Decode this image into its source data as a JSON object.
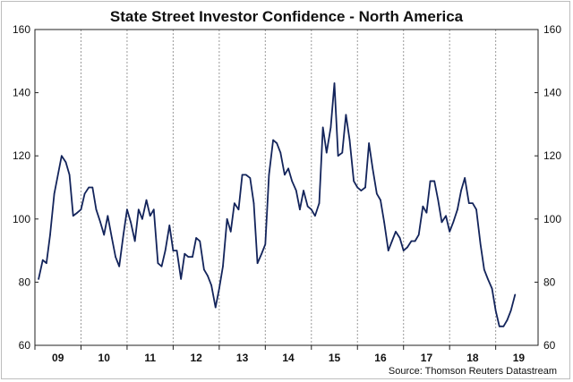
{
  "chart_data": {
    "type": "line",
    "title": "State Street Investor Confidence - North America",
    "source": "Source: Thomson Reuters Datastream",
    "xlabel": "",
    "ylabel": "",
    "ylim": [
      60,
      160
    ],
    "yticks": [
      60,
      80,
      100,
      120,
      140,
      160
    ],
    "y_axes": [
      "left",
      "right"
    ],
    "grid": "vertical dashed at year boundaries",
    "line_color": "#13245b",
    "xlim": [
      2008.5,
      2019.42
    ],
    "year_ticks": [
      {
        "label": "09",
        "year": 2009
      },
      {
        "label": "10",
        "year": 2010
      },
      {
        "label": "11",
        "year": 2011
      },
      {
        "label": "12",
        "year": 2012
      },
      {
        "label": "13",
        "year": 2013
      },
      {
        "label": "14",
        "year": 2014
      },
      {
        "label": "15",
        "year": 2015
      },
      {
        "label": "16",
        "year": 2016
      },
      {
        "label": "17",
        "year": 2017
      },
      {
        "label": "18",
        "year": 2018
      },
      {
        "label": "19",
        "year": 2019
      }
    ],
    "series": [
      {
        "values": [
          [
            2008.58,
            81
          ],
          [
            2008.67,
            87
          ],
          [
            2008.75,
            86
          ],
          [
            2008.83,
            95
          ],
          [
            2008.92,
            108
          ],
          [
            2009.0,
            114
          ],
          [
            2009.08,
            120
          ],
          [
            2009.17,
            118
          ],
          [
            2009.25,
            114
          ],
          [
            2009.33,
            101
          ],
          [
            2009.42,
            102
          ],
          [
            2009.5,
            103
          ],
          [
            2009.58,
            108
          ],
          [
            2009.67,
            110
          ],
          [
            2009.75,
            110
          ],
          [
            2009.83,
            103
          ],
          [
            2009.92,
            99
          ],
          [
            2010.0,
            95
          ],
          [
            2010.08,
            101
          ],
          [
            2010.17,
            94
          ],
          [
            2010.25,
            88
          ],
          [
            2010.33,
            85
          ],
          [
            2010.42,
            95
          ],
          [
            2010.5,
            103
          ],
          [
            2010.58,
            99
          ],
          [
            2010.67,
            93
          ],
          [
            2010.75,
            103
          ],
          [
            2010.83,
            100
          ],
          [
            2010.92,
            106
          ],
          [
            2011.0,
            101
          ],
          [
            2011.08,
            103
          ],
          [
            2011.17,
            86
          ],
          [
            2011.25,
            85
          ],
          [
            2011.33,
            90
          ],
          [
            2011.42,
            98
          ],
          [
            2011.5,
            90
          ],
          [
            2011.58,
            90
          ],
          [
            2011.67,
            81
          ],
          [
            2011.75,
            89
          ],
          [
            2011.83,
            88
          ],
          [
            2011.92,
            88
          ],
          [
            2012.0,
            94
          ],
          [
            2012.08,
            93
          ],
          [
            2012.17,
            84
          ],
          [
            2012.25,
            82
          ],
          [
            2012.33,
            79
          ],
          [
            2012.42,
            72
          ],
          [
            2012.5,
            78
          ],
          [
            2012.58,
            85
          ],
          [
            2012.67,
            100
          ],
          [
            2012.75,
            96
          ],
          [
            2012.83,
            105
          ],
          [
            2012.92,
            103
          ],
          [
            2013.0,
            114
          ],
          [
            2013.08,
            114
          ],
          [
            2013.17,
            113
          ],
          [
            2013.25,
            105
          ],
          [
            2013.33,
            86
          ],
          [
            2013.42,
            89
          ],
          [
            2013.5,
            92
          ],
          [
            2013.58,
            114
          ],
          [
            2013.67,
            125
          ],
          [
            2013.75,
            124
          ],
          [
            2013.83,
            121
          ],
          [
            2013.92,
            114
          ],
          [
            2014.0,
            116
          ],
          [
            2014.08,
            112
          ],
          [
            2014.17,
            109
          ],
          [
            2014.25,
            103
          ],
          [
            2014.33,
            109
          ],
          [
            2014.42,
            104
          ],
          [
            2014.5,
            103
          ],
          [
            2014.58,
            101
          ],
          [
            2014.67,
            105
          ],
          [
            2014.75,
            129
          ],
          [
            2014.83,
            121
          ],
          [
            2014.92,
            129
          ],
          [
            2015.0,
            143
          ],
          [
            2015.08,
            120
          ],
          [
            2015.17,
            121
          ],
          [
            2015.25,
            133
          ],
          [
            2015.33,
            125
          ],
          [
            2015.42,
            112
          ],
          [
            2015.5,
            110
          ],
          [
            2015.58,
            109
          ],
          [
            2015.67,
            110
          ],
          [
            2015.75,
            124
          ],
          [
            2015.83,
            116
          ],
          [
            2015.92,
            108
          ],
          [
            2016.0,
            106
          ],
          [
            2016.08,
            99
          ],
          [
            2016.17,
            90
          ],
          [
            2016.25,
            93
          ],
          [
            2016.33,
            96
          ],
          [
            2016.42,
            94
          ],
          [
            2016.5,
            90
          ],
          [
            2016.58,
            91
          ],
          [
            2016.67,
            93
          ],
          [
            2016.75,
            93
          ],
          [
            2016.83,
            95
          ],
          [
            2016.92,
            104
          ],
          [
            2017.0,
            102
          ],
          [
            2017.08,
            112
          ],
          [
            2017.17,
            112
          ],
          [
            2017.25,
            106
          ],
          [
            2017.33,
            99
          ],
          [
            2017.42,
            101
          ],
          [
            2017.5,
            96
          ],
          [
            2017.58,
            99
          ],
          [
            2017.67,
            103
          ],
          [
            2017.75,
            109
          ],
          [
            2017.83,
            113
          ],
          [
            2017.92,
            105
          ],
          [
            2018.0,
            105
          ],
          [
            2018.08,
            103
          ],
          [
            2018.17,
            92
          ],
          [
            2018.25,
            84
          ],
          [
            2018.33,
            81
          ],
          [
            2018.42,
            78
          ],
          [
            2018.5,
            71
          ],
          [
            2018.58,
            66
          ],
          [
            2018.67,
            66
          ],
          [
            2018.75,
            68
          ],
          [
            2018.83,
            71
          ],
          [
            2018.92,
            76
          ]
        ]
      }
    ]
  }
}
